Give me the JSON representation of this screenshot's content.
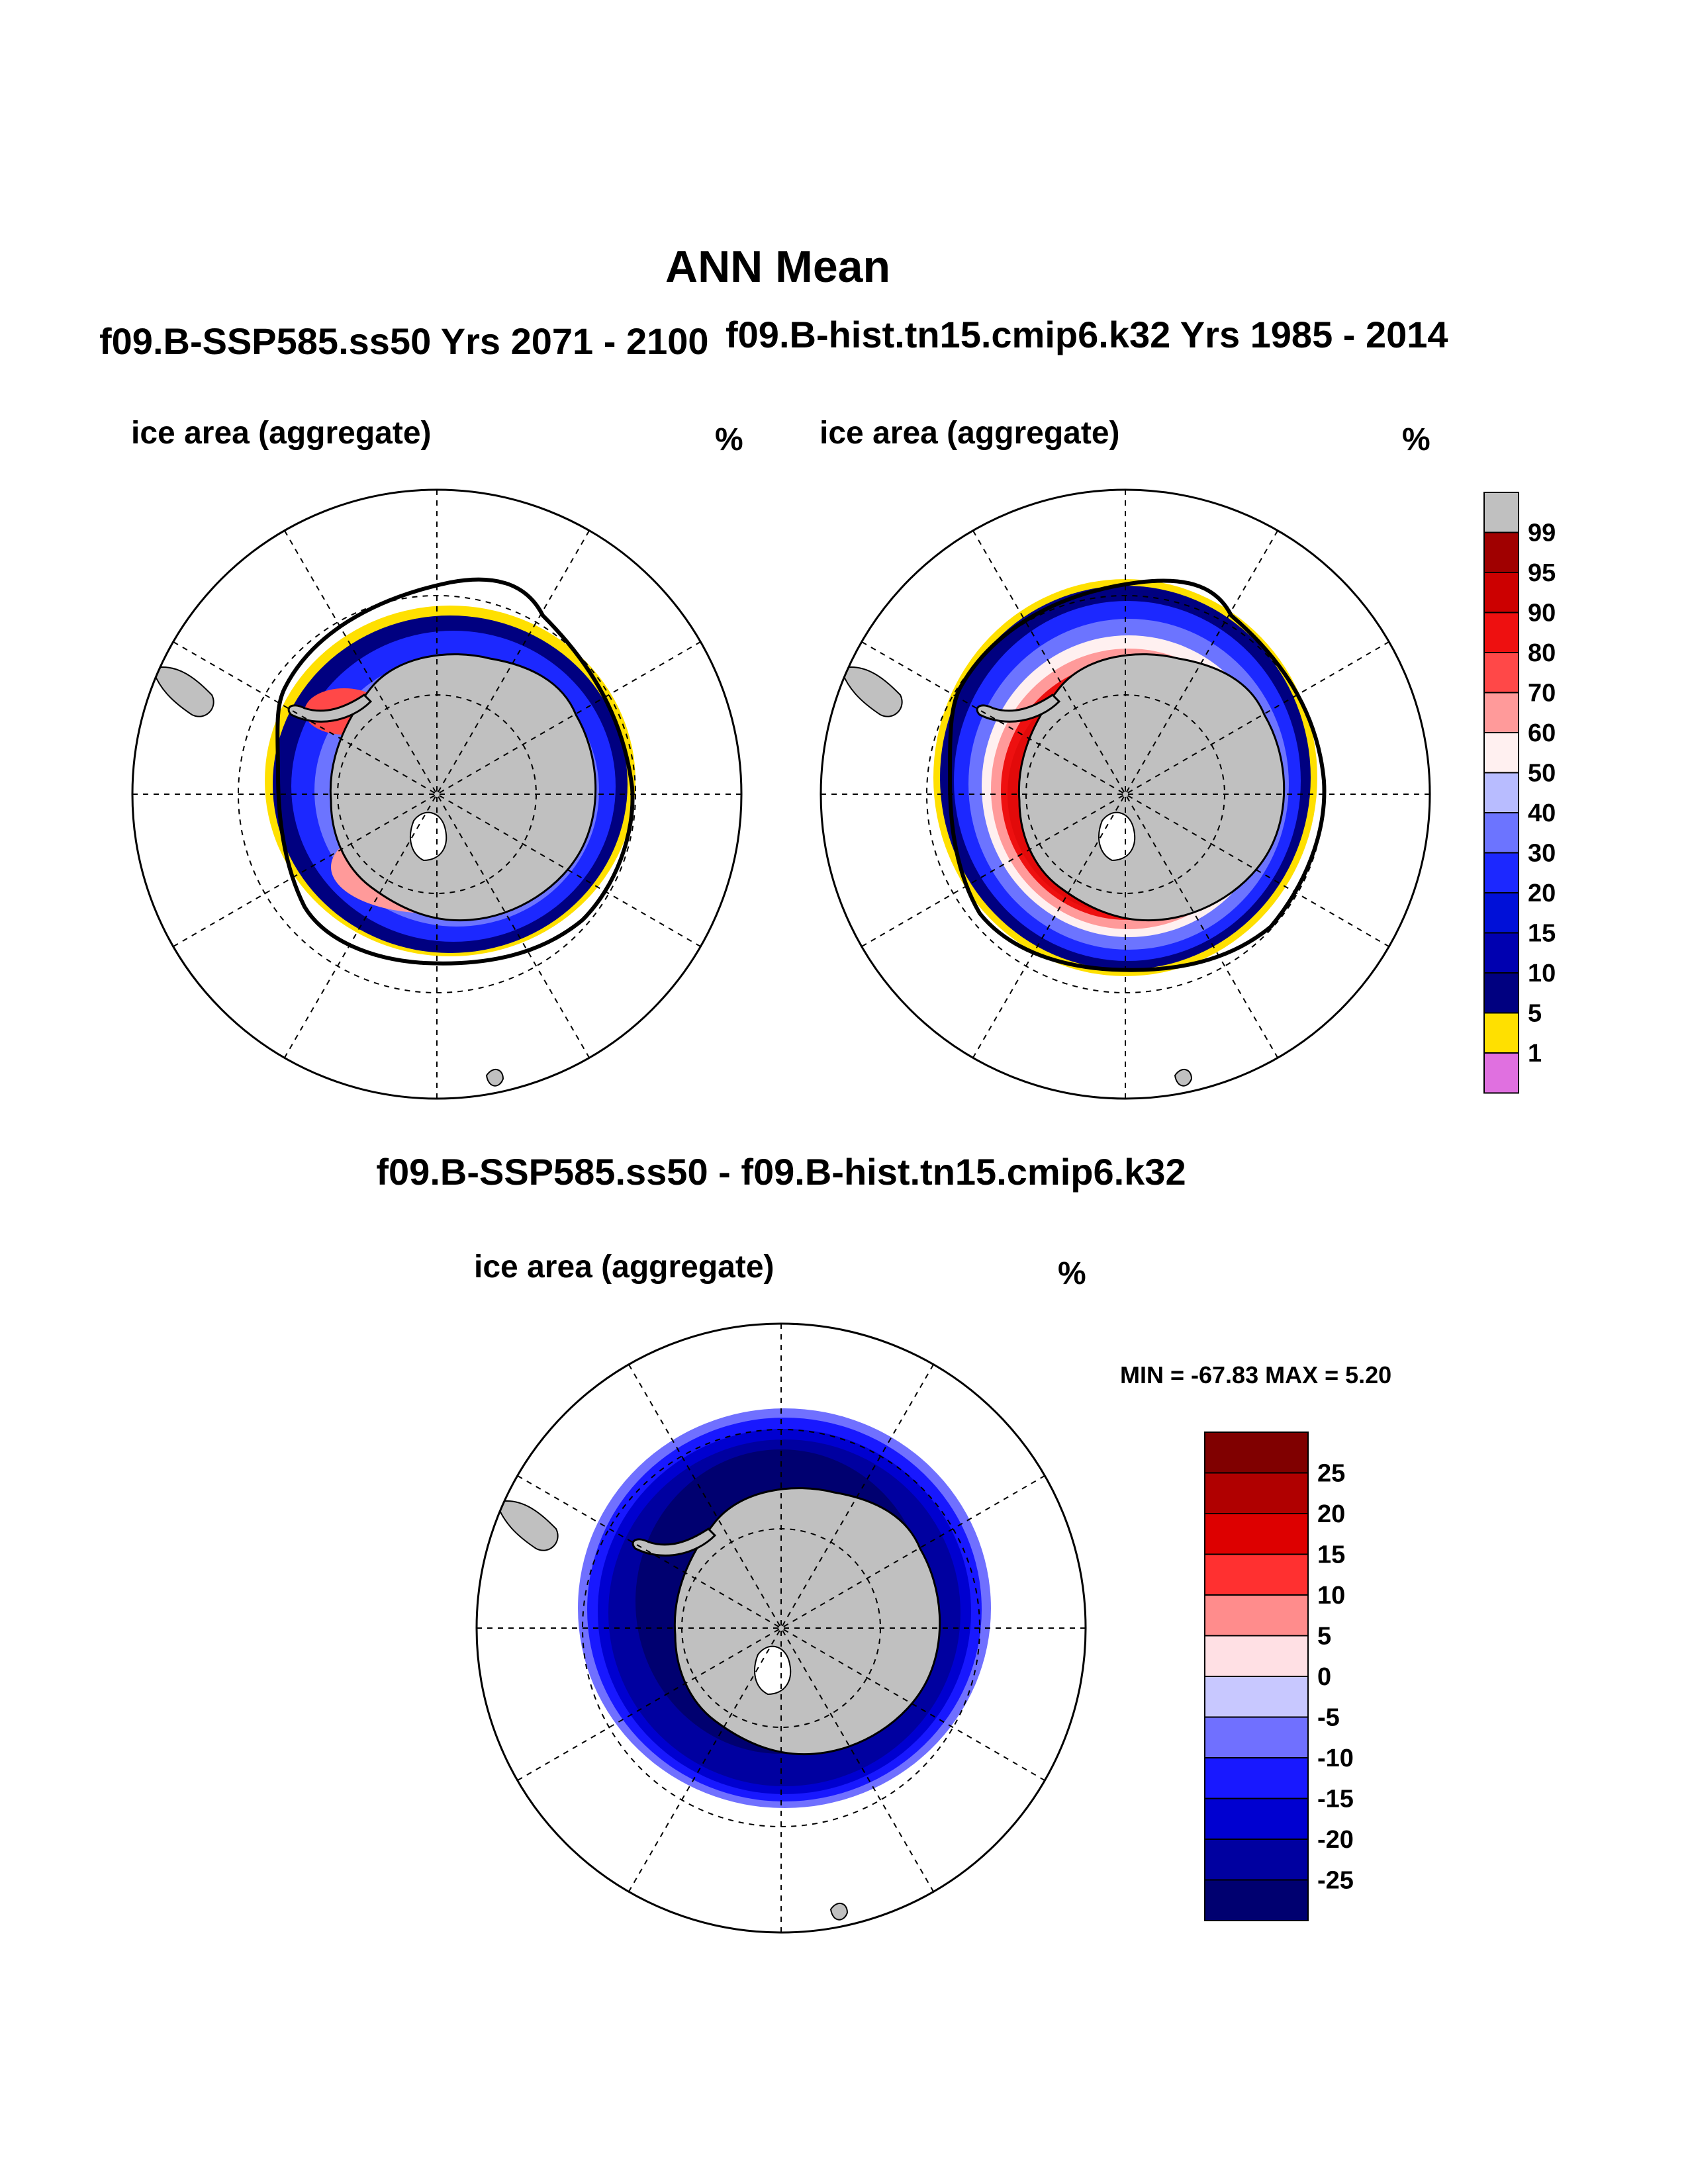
{
  "title": "ANN Mean",
  "panel_left": {
    "case_title": "f09.B-SSP585.ss50  Yrs 2071 - 2100",
    "variable": "ice area  (aggregate)",
    "units": "%"
  },
  "panel_right": {
    "case_title": "f09.B-hist.tn15.cmip6.k32  Yrs 1985 - 2014",
    "variable": "ice area  (aggregate)",
    "units": "%"
  },
  "panel_diff": {
    "case_title": "f09.B-SSP585.ss50 - f09.B-hist.tn15.cmip6.k32",
    "variable": "ice area  (aggregate)",
    "units": "%",
    "minmax": "MIN = -67.83 MAX =   5.20"
  },
  "colorbar_abs": {
    "labels": [
      "99",
      "95",
      "90",
      "80",
      "70",
      "60",
      "50",
      "40",
      "30",
      "20",
      "15",
      "10",
      "5",
      "1"
    ],
    "colors": [
      "#c0c0c0",
      "#a00000",
      "#cc0000",
      "#ee1010",
      "#ff4848",
      "#ff9a9a",
      "#fff0f0",
      "#b8bcff",
      "#6c74ff",
      "#1c28ff",
      "#0010d8",
      "#0000b0",
      "#000080",
      "#ffe000",
      "#e070e0"
    ]
  },
  "colorbar_diff": {
    "labels": [
      "25",
      "20",
      "15",
      "10",
      "5",
      "0",
      "-5",
      "-10",
      "-15",
      "-20",
      "-25"
    ],
    "colors": [
      "#800000",
      "#b00000",
      "#dd0000",
      "#ff3030",
      "#ff8c8c",
      "#ffe0e4",
      "#c8c8ff",
      "#7070ff",
      "#1818ff",
      "#0000d0",
      "#0000a0",
      "#000070"
    ]
  },
  "chart_data": [
    {
      "type": "heatmap",
      "title": "f09.B-SSP585.ss50  Yrs 2071 - 2100",
      "variable": "ice area  (aggregate)",
      "units": "%",
      "projection": "south polar stereographic",
      "contour_levels": [
        1,
        5,
        10,
        15,
        20,
        30,
        40,
        50,
        60,
        70,
        80,
        90,
        95,
        99
      ]
    },
    {
      "type": "heatmap",
      "title": "f09.B-hist.tn15.cmip6.k32  Yrs 1985 - 2014",
      "variable": "ice area  (aggregate)",
      "units": "%",
      "projection": "south polar stereographic",
      "contour_levels": [
        1,
        5,
        10,
        15,
        20,
        30,
        40,
        50,
        60,
        70,
        80,
        90,
        95,
        99
      ]
    },
    {
      "type": "heatmap",
      "title": "f09.B-SSP585.ss50 - f09.B-hist.tn15.cmip6.k32",
      "variable": "ice area  (aggregate)",
      "units": "%",
      "projection": "south polar stereographic",
      "contour_levels": [
        -25,
        -20,
        -15,
        -10,
        -5,
        0,
        5,
        10,
        15,
        20,
        25
      ],
      "min": -67.83,
      "max": 5.2
    }
  ]
}
